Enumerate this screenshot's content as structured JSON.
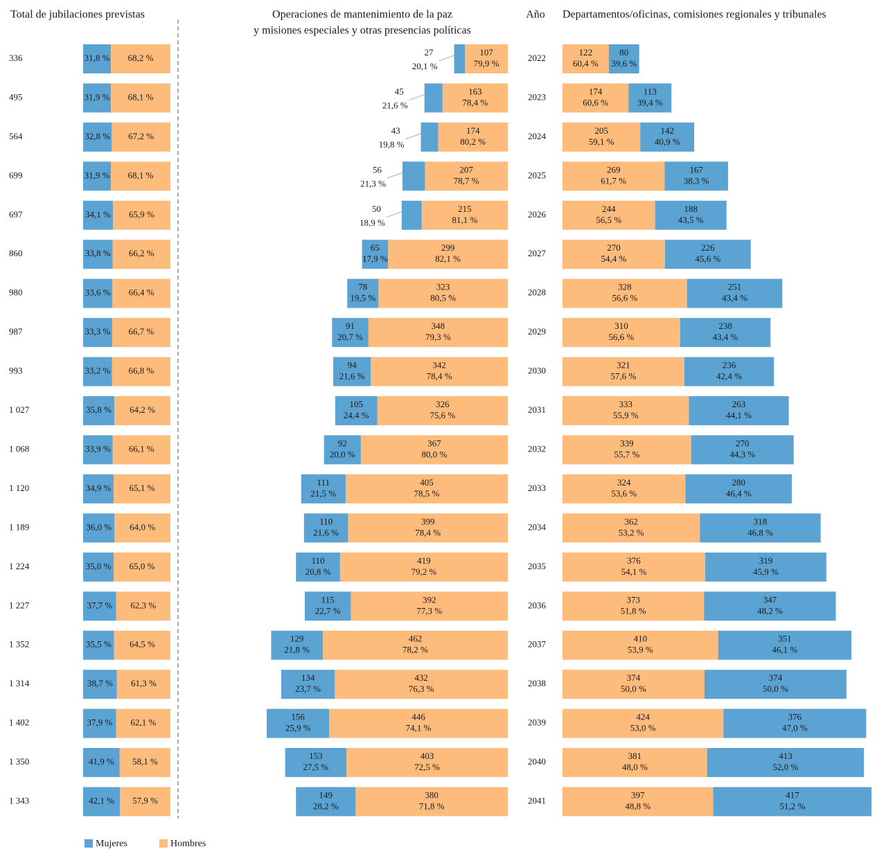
{
  "chart_data": [
    {
      "type": "bar-100",
      "title": "Total de jubilaciones previstas",
      "totals": [
        336,
        495,
        564,
        699,
        697,
        860,
        980,
        987,
        993,
        {
          "value": 1027,
          "label": "1 027"
        },
        {
          "value": 1068,
          "label": "1 068"
        },
        {
          "value": 1120,
          "label": "1 120"
        },
        {
          "value": 1189,
          "label": "1 189"
        },
        {
          "value": 1224,
          "label": "1 224"
        },
        {
          "value": 1227,
          "label": "1 227"
        },
        {
          "value": 1352,
          "label": "1 352"
        },
        {
          "value": 1314,
          "label": "1 314"
        },
        {
          "value": 1402,
          "label": "1 402"
        },
        {
          "value": 1350,
          "label": "1 350"
        },
        {
          "value": 1343,
          "label": "1 343"
        }
      ],
      "series": [
        {
          "name": "Mujeres",
          "color": "#5ba3d3",
          "values": [
            31.8,
            31.9,
            32.8,
            31.9,
            34.1,
            33.8,
            33.6,
            33.3,
            33.2,
            35.8,
            33.9,
            34.9,
            36.0,
            35.0,
            37.7,
            35.5,
            38.7,
            37.9,
            41.9,
            42.1
          ],
          "value_labels": [
            "31,8 %",
            "31,9 %",
            "32,8 %",
            "31,9 %",
            "34,1 %",
            "33,8 %",
            "33,6 %",
            "33,3 %",
            "33,2 %",
            "35,8 %",
            "33,9 %",
            "34,9 %",
            "36,0 %",
            "35,0 %",
            "37,7 %",
            "35,5 %",
            "38,7 %",
            "37,9 %",
            "41,9 %",
            "42,1 %"
          ]
        },
        {
          "name": "Hombres",
          "color": "#fdbb7c",
          "values": [
            68.2,
            68.1,
            67.2,
            68.1,
            65.9,
            66.2,
            66.4,
            66.7,
            66.8,
            64.2,
            66.1,
            65.1,
            64.0,
            65.0,
            62.3,
            64.5,
            61.3,
            62.1,
            58.1,
            57.9
          ],
          "value_labels": [
            "68,2 %",
            "68,1 %",
            "67,2 %",
            "68,1 %",
            "65,9 %",
            "66,2 %",
            "66,4 %",
            "66,7 %",
            "66,8 %",
            "64,2 %",
            "66,1 %",
            "65,1 %",
            "64,0 %",
            "65,0 %",
            "62,3 %",
            "64,5 %",
            "61,3 %",
            "62,1 %",
            "58,1 %",
            "57,9 %"
          ]
        }
      ]
    },
    {
      "type": "bar-left",
      "title": [
        "Operaciones de mantenimiento de la paz",
        "y misiones especiales y otras presencias políticas"
      ],
      "series": [
        {
          "name": "Mujeres",
          "color": "#5ba3d3",
          "values": [
            27,
            45,
            43,
            56,
            50,
            65,
            78,
            91,
            94,
            105,
            92,
            111,
            110,
            110,
            115,
            129,
            134,
            156,
            153,
            149
          ],
          "shares": [
            20.1,
            21.6,
            19.8,
            21.3,
            18.9,
            17.9,
            19.5,
            20.7,
            21.6,
            24.4,
            20.0,
            21.5,
            21.6,
            20.8,
            22.7,
            21.8,
            23.7,
            25.9,
            27.5,
            28.2
          ],
          "share_labels": [
            "20,1 %",
            "21,6 %",
            "19,8 %",
            "21,3 %",
            "18,9 %",
            "17,9 %",
            "19,5 %",
            "20,7 %",
            "21,6 %",
            "24,4 %",
            "20,0 %",
            "21,5 %",
            "21,6 %",
            "20,8 %",
            "22,7 %",
            "21,8 %",
            "23,7 %",
            "25,9 %",
            "27,5 %",
            "28,2 %"
          ]
        },
        {
          "name": "Hombres",
          "color": "#fdbb7c",
          "values": [
            107,
            163,
            174,
            207,
            215,
            299,
            323,
            348,
            342,
            326,
            367,
            405,
            399,
            419,
            392,
            462,
            432,
            446,
            403,
            380
          ],
          "shares": [
            79.9,
            78.4,
            80.2,
            78.7,
            81.1,
            82.1,
            80.5,
            79.3,
            78.4,
            75.6,
            80.0,
            78.5,
            78.4,
            79.2,
            77.3,
            78.2,
            76.3,
            74.1,
            72.5,
            71.8
          ],
          "share_labels": [
            "79,9 %",
            "78,4 %",
            "80,2 %",
            "78,7 %",
            "81,1 %",
            "82,1 %",
            "80,5 %",
            "79,3 %",
            "78,4 %",
            "75,6 %",
            "80,0 %",
            "78,5 %",
            "78,4 %",
            "79,2 %",
            "77,3 %",
            "78,2 %",
            "76,3 %",
            "74,1 %",
            "72,5 %",
            "71,8 %"
          ]
        }
      ]
    },
    {
      "type": "bar-right",
      "title": "Departamentos/oficinas, comisiones regionales y tribunales",
      "category_title": "Año",
      "categories": [
        "2022",
        "2023",
        "2024",
        "2025",
        "2026",
        "2027",
        "2028",
        "2029",
        "2030",
        "2031",
        "2032",
        "2033",
        "2034",
        "2035",
        "2036",
        "2037",
        "2038",
        "2039",
        "2040",
        "2041"
      ],
      "series": [
        {
          "name": "Hombres",
          "color": "#fdbb7c",
          "values": [
            122,
            174,
            205,
            269,
            244,
            270,
            328,
            310,
            321,
            333,
            339,
            324,
            362,
            376,
            373,
            410,
            374,
            424,
            381,
            397
          ],
          "shares": [
            60.4,
            60.6,
            59.1,
            61.7,
            56.5,
            54.4,
            56.6,
            56.6,
            57.6,
            55.9,
            55.7,
            53.6,
            53.2,
            54.1,
            51.8,
            53.9,
            50.0,
            53.0,
            48.0,
            48.8
          ],
          "share_labels": [
            "60,4 %",
            "60,6 %",
            "59,1 %",
            "61,7 %",
            "56,5 %",
            "54,4 %",
            "56,6 %",
            "56,6 %",
            "57,6 %",
            "55,9 %",
            "55,7 %",
            "53,6 %",
            "53,2 %",
            "54,1 %",
            "51,8 %",
            "53,9 %",
            "50,0 %",
            "53,0 %",
            "48,0 %",
            "48,8 %"
          ]
        },
        {
          "name": "Mujeres",
          "color": "#5ba3d3",
          "values": [
            80,
            113,
            142,
            167,
            188,
            226,
            251,
            238,
            236,
            263,
            270,
            280,
            318,
            319,
            347,
            351,
            374,
            376,
            413,
            417
          ],
          "shares": [
            39.6,
            39.4,
            40.9,
            38.3,
            43.5,
            45.6,
            43.4,
            43.4,
            42.4,
            44.1,
            44.3,
            46.4,
            46.8,
            45.9,
            48.2,
            46.1,
            50.0,
            47.0,
            52.0,
            51.2
          ],
          "share_labels": [
            "39,6 %",
            "39,4 %",
            "40,9 %",
            "38,3 %",
            "43,5 %",
            "45,6 %",
            "43,4 %",
            "43,4 %",
            "42,4 %",
            "44,1 %",
            "44,3 %",
            "46,4 %",
            "46,8 %",
            "45,9 %",
            "48,2 %",
            "46,1 %",
            "50,0 %",
            "47,0 %",
            "52,0 %",
            "51,2 %"
          ]
        }
      ]
    }
  ]
}
